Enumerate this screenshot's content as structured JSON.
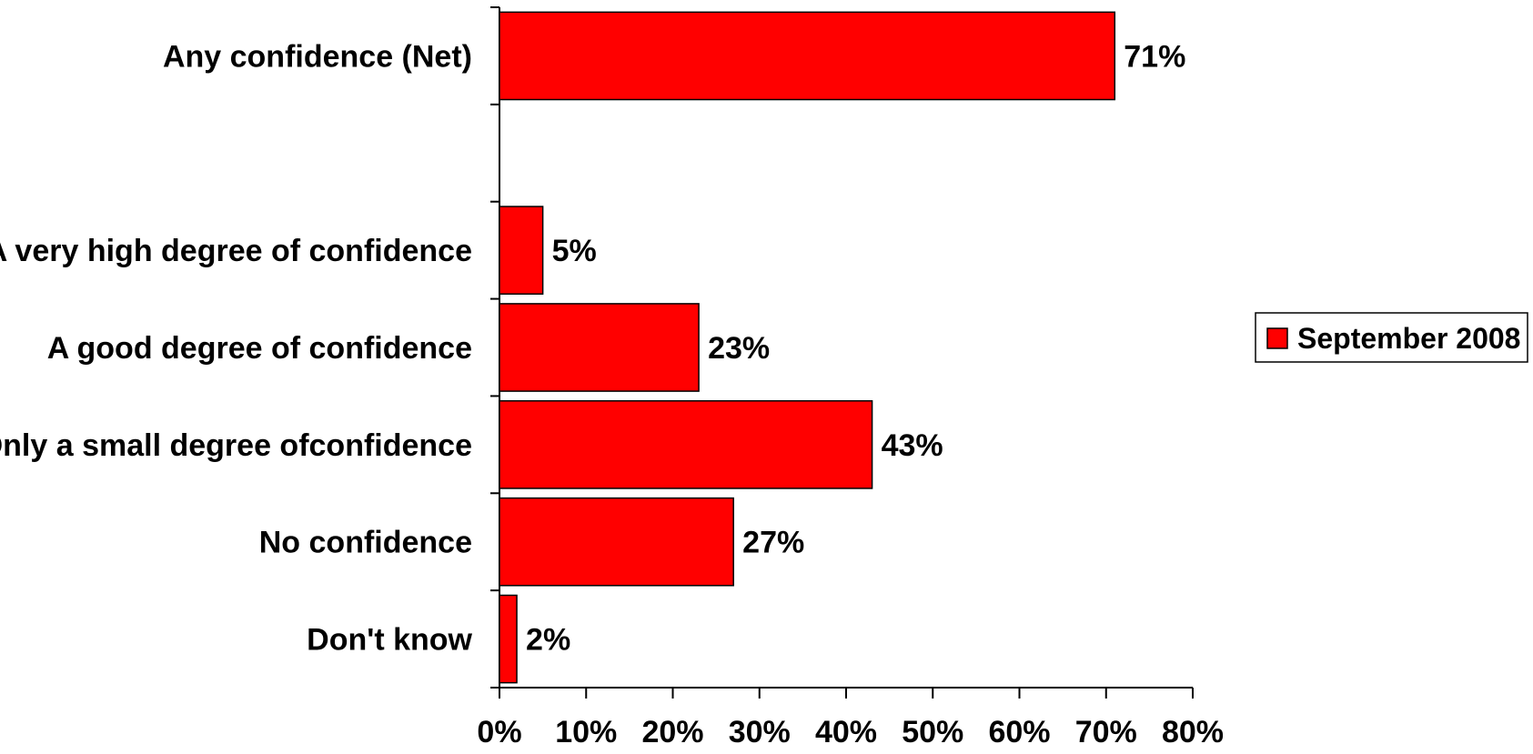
{
  "chart_data": {
    "type": "bar",
    "orientation": "horizontal",
    "categories": [
      "Any confidence (Net)",
      "",
      "A very high degree of confidence",
      "A good degree of confidence",
      "Only a small degree ofconfidence",
      "No confidence",
      "Don't know"
    ],
    "series": [
      {
        "name": "September 2008",
        "values": [
          71,
          null,
          5,
          23,
          43,
          27,
          2
        ],
        "labels": [
          "71%",
          "",
          "5%",
          "23%",
          "43%",
          "27%",
          "2%"
        ]
      }
    ],
    "xticks": [
      "0%",
      "10%",
      "20%",
      "30%",
      "40%",
      "50%",
      "60%",
      "70%",
      "80%"
    ],
    "xlim": [
      0,
      80
    ],
    "grid": false,
    "legend": "right",
    "colors": {
      "bar": "#ff0000",
      "bar_border": "#000000",
      "axis": "#000000"
    }
  }
}
